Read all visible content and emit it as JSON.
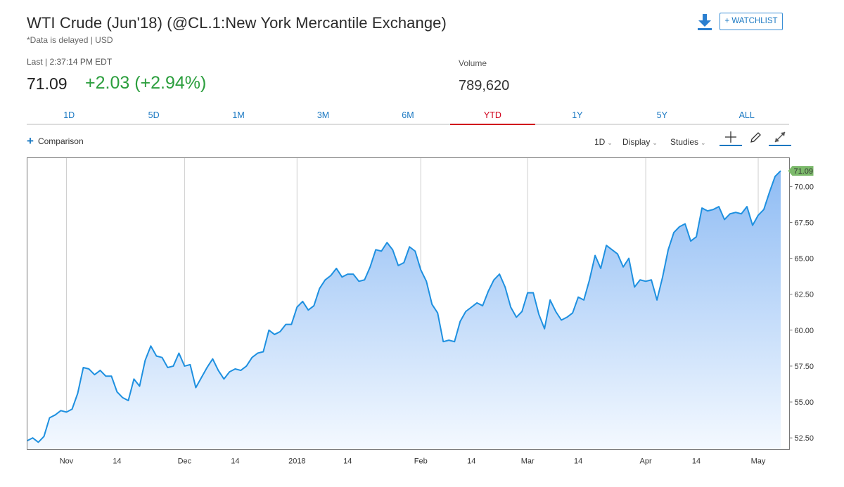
{
  "header": {
    "title": "WTI Crude (Jun'18) (@CL.1:New York Mercantile Exchange)",
    "subtitle": "*Data is delayed | USD",
    "watchlist_label": "+ WATCHLIST",
    "download_icon": "download-icon"
  },
  "quote": {
    "last_label": "Last | 2:37:14 PM EDT",
    "last_price": "71.09",
    "change": "+2.03 (+2.94%)",
    "volume_label": "Volume",
    "volume_value": "789,620"
  },
  "range_tabs": [
    {
      "label": "1D",
      "active": false
    },
    {
      "label": "5D",
      "active": false
    },
    {
      "label": "1M",
      "active": false
    },
    {
      "label": "3M",
      "active": false
    },
    {
      "label": "6M",
      "active": false
    },
    {
      "label": "YTD",
      "active": true
    },
    {
      "label": "1Y",
      "active": false
    },
    {
      "label": "5Y",
      "active": false
    },
    {
      "label": "ALL",
      "active": false
    }
  ],
  "toolbar": {
    "comparison_label": "Comparison",
    "interval_label": "1D",
    "display_label": "Display",
    "studies_label": "Studies",
    "icons": [
      "crosshair-icon",
      "pencil-icon",
      "expand-icon"
    ]
  },
  "colors": {
    "line": "#1e90e0",
    "fill_top": "#8fbcf4",
    "fill_bottom": "#f4f9ff",
    "price_tag": "#7cba6b",
    "accent": "#1a78c2",
    "active_tab": "#d0021b",
    "positive": "#2b9e3d"
  },
  "chart_data": {
    "type": "area",
    "ylim": [
      51.7,
      72.0
    ],
    "y_ticks": [
      52.5,
      55.0,
      57.5,
      60.0,
      62.5,
      65.0,
      67.5,
      70.0
    ],
    "y_tick_labels": [
      "52.50",
      "55.00",
      "57.50",
      "60.00",
      "62.50",
      "65.00",
      "67.50",
      "70.00"
    ],
    "x_ticks": [
      {
        "label": "Nov",
        "idx": 7,
        "grid": true
      },
      {
        "label": "14",
        "idx": 16,
        "grid": false
      },
      {
        "label": "Dec",
        "idx": 28,
        "grid": true
      },
      {
        "label": "14",
        "idx": 37,
        "grid": false
      },
      {
        "label": "2018",
        "idx": 48,
        "grid": true
      },
      {
        "label": "14",
        "idx": 57,
        "grid": false
      },
      {
        "label": "Feb",
        "idx": 70,
        "grid": true
      },
      {
        "label": "14",
        "idx": 79,
        "grid": false
      },
      {
        "label": "Mar",
        "idx": 89,
        "grid": true
      },
      {
        "label": "14",
        "idx": 98,
        "grid": false
      },
      {
        "label": "Apr",
        "idx": 110,
        "grid": true
      },
      {
        "label": "14",
        "idx": 119,
        "grid": false
      },
      {
        "label": "May",
        "idx": 130,
        "grid": true
      }
    ],
    "last_value_label": "71.09",
    "series": [
      {
        "values": [
          52.3,
          52.5,
          52.2,
          52.6,
          53.9,
          54.1,
          54.4,
          54.3,
          54.5,
          55.6,
          57.4,
          57.3,
          56.9,
          57.2,
          56.8,
          56.8,
          55.7,
          55.3,
          55.1,
          56.6,
          56.1,
          57.9,
          58.9,
          58.2,
          58.1,
          57.4,
          57.5,
          58.4,
          57.5,
          57.6,
          56.0,
          56.7,
          57.4,
          58.0,
          57.2,
          56.6,
          57.1,
          57.3,
          57.2,
          57.5,
          58.1,
          58.4,
          58.5,
          60.0,
          59.7,
          59.9,
          60.4,
          60.4,
          61.6,
          62.0,
          61.4,
          61.7,
          62.9,
          63.5,
          63.8,
          64.3,
          63.7,
          63.9,
          63.9,
          63.4,
          63.5,
          64.4,
          65.6,
          65.5,
          66.1,
          65.6,
          64.5,
          64.7,
          65.8,
          65.5,
          64.2,
          63.4,
          61.8,
          61.2,
          59.2,
          59.3,
          59.2,
          60.6,
          61.3,
          61.6,
          61.9,
          61.7,
          62.7,
          63.5,
          63.9,
          63.0,
          61.6,
          60.9,
          61.3,
          62.6,
          62.6,
          61.1,
          60.1,
          62.1,
          61.3,
          60.7,
          60.9,
          61.2,
          62.3,
          62.1,
          63.5,
          65.2,
          64.3,
          65.9,
          65.6,
          65.3,
          64.4,
          65.0,
          63.0,
          63.5,
          63.4,
          63.5,
          62.1,
          63.7,
          65.6,
          66.8,
          67.2,
          67.4,
          66.2,
          66.5,
          68.5,
          68.3,
          68.4,
          68.6,
          67.7,
          68.1,
          68.2,
          68.1,
          68.6,
          67.3,
          68.0,
          68.4,
          69.6,
          70.7,
          71.09
        ]
      }
    ]
  }
}
